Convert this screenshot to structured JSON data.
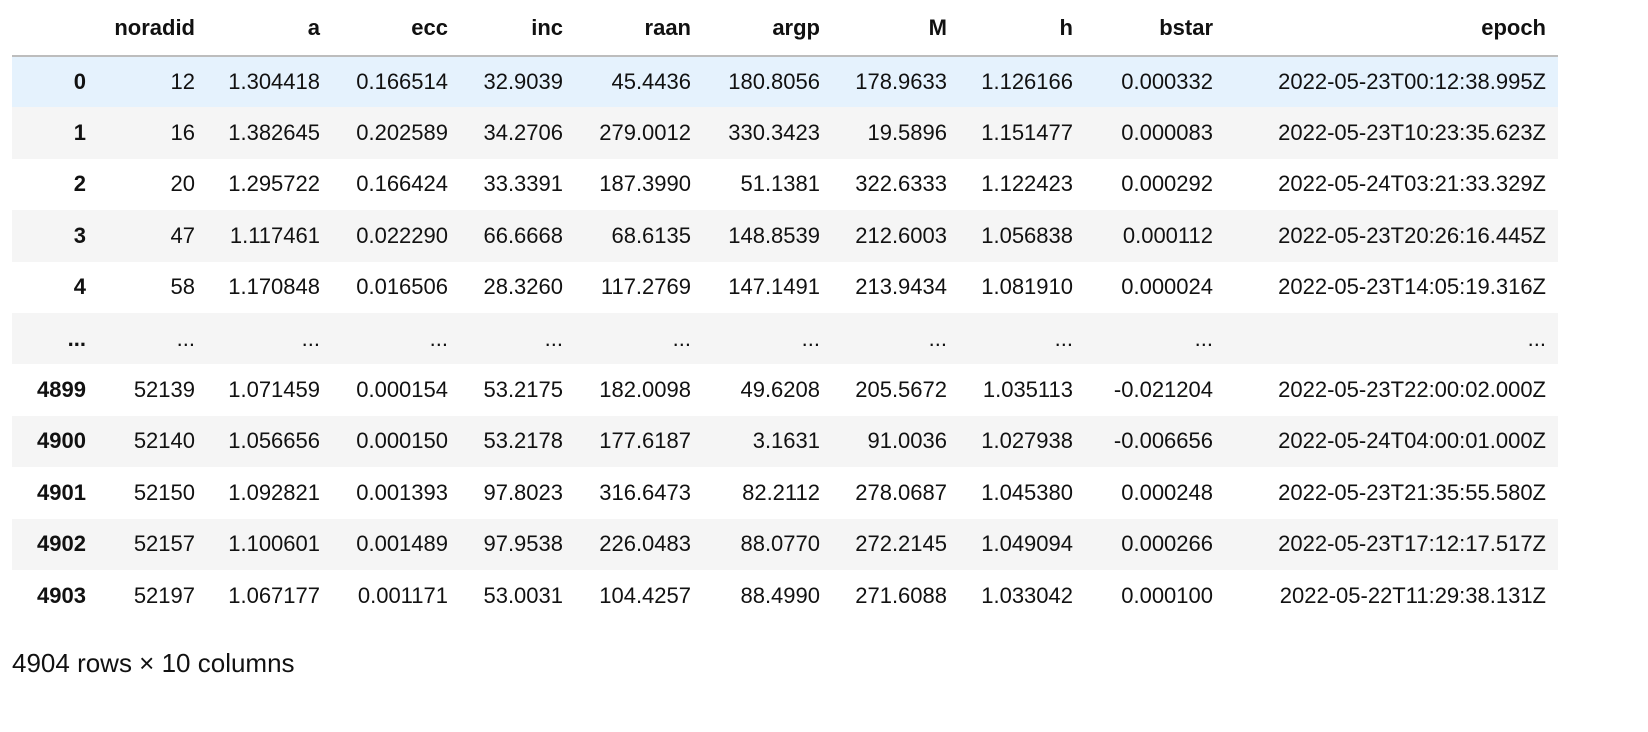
{
  "table": {
    "columns": [
      "noradid",
      "a",
      "ecc",
      "inc",
      "raan",
      "argp",
      "M",
      "h",
      "bstar",
      "epoch"
    ],
    "rows": [
      {
        "index": "0",
        "cells": [
          "12",
          "1.304418",
          "0.166514",
          "32.9039",
          "45.4436",
          "180.8056",
          "178.9633",
          "1.126166",
          "0.000332",
          "2022-05-23T00:12:38.995Z"
        ]
      },
      {
        "index": "1",
        "cells": [
          "16",
          "1.382645",
          "0.202589",
          "34.2706",
          "279.0012",
          "330.3423",
          "19.5896",
          "1.151477",
          "0.000083",
          "2022-05-23T10:23:35.623Z"
        ]
      },
      {
        "index": "2",
        "cells": [
          "20",
          "1.295722",
          "0.166424",
          "33.3391",
          "187.3990",
          "51.1381",
          "322.6333",
          "1.122423",
          "0.000292",
          "2022-05-24T03:21:33.329Z"
        ]
      },
      {
        "index": "3",
        "cells": [
          "47",
          "1.117461",
          "0.022290",
          "66.6668",
          "68.6135",
          "148.8539",
          "212.6003",
          "1.056838",
          "0.000112",
          "2022-05-23T20:26:16.445Z"
        ]
      },
      {
        "index": "4",
        "cells": [
          "58",
          "1.170848",
          "0.016506",
          "28.3260",
          "117.2769",
          "147.1491",
          "213.9434",
          "1.081910",
          "0.000024",
          "2022-05-23T14:05:19.316Z"
        ]
      },
      {
        "index": "...",
        "cells": [
          "...",
          "...",
          "...",
          "...",
          "...",
          "...",
          "...",
          "...",
          "...",
          "..."
        ]
      },
      {
        "index": "4899",
        "cells": [
          "52139",
          "1.071459",
          "0.000154",
          "53.2175",
          "182.0098",
          "49.6208",
          "205.5672",
          "1.035113",
          "-0.021204",
          "2022-05-23T22:00:02.000Z"
        ]
      },
      {
        "index": "4900",
        "cells": [
          "52140",
          "1.056656",
          "0.000150",
          "53.2178",
          "177.6187",
          "3.1631",
          "91.0036",
          "1.027938",
          "-0.006656",
          "2022-05-24T04:00:01.000Z"
        ]
      },
      {
        "index": "4901",
        "cells": [
          "52150",
          "1.092821",
          "0.001393",
          "97.8023",
          "316.6473",
          "82.2112",
          "278.0687",
          "1.045380",
          "0.000248",
          "2022-05-23T21:35:55.580Z"
        ]
      },
      {
        "index": "4902",
        "cells": [
          "52157",
          "1.100601",
          "0.001489",
          "97.9538",
          "226.0483",
          "88.0770",
          "272.2145",
          "1.049094",
          "0.000266",
          "2022-05-23T17:12:17.517Z"
        ]
      },
      {
        "index": "4903",
        "cells": [
          "52197",
          "1.067177",
          "0.001171",
          "53.0031",
          "104.4257",
          "88.4990",
          "271.6088",
          "1.033042",
          "0.000100",
          "2022-05-22T11:29:38.131Z"
        ]
      }
    ]
  },
  "footer": "4904 rows × 10 columns"
}
